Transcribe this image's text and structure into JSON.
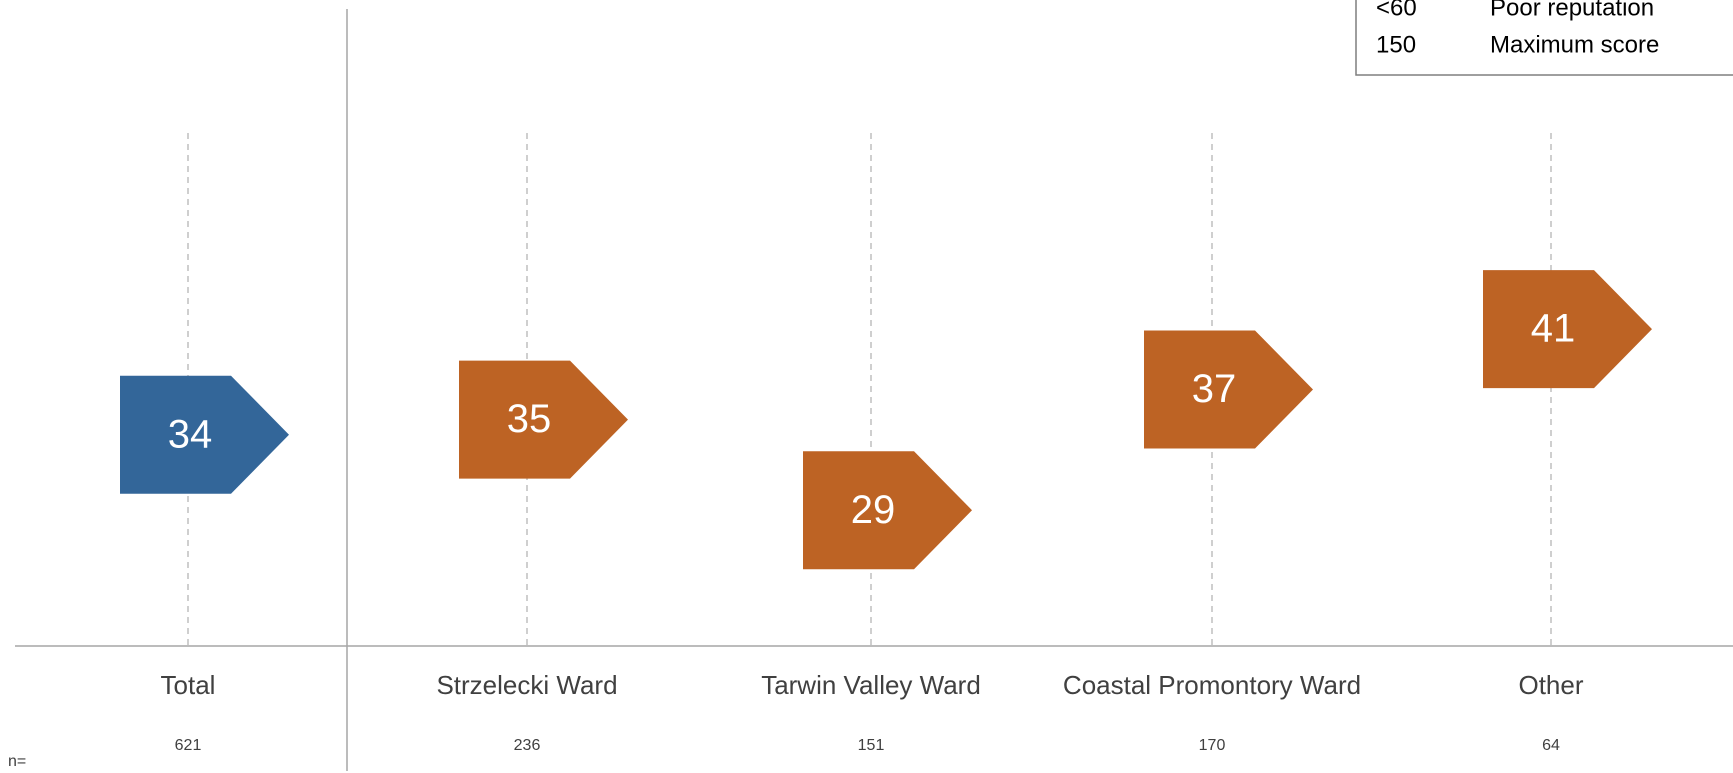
{
  "chart_data": {
    "type": "pentagon",
    "categories": [
      "Total",
      "Strzelecki Ward",
      "Tarwin Valley Ward",
      "Coastal Promontory Ward",
      "Other"
    ],
    "values": [
      34,
      35,
      29,
      37,
      41
    ],
    "colors": [
      "#336699",
      "#bd6324",
      "#bd6324",
      "#bd6324",
      "#bd6324"
    ],
    "sample_label": "n=",
    "sample_sizes": [
      621,
      236,
      151,
      170,
      64
    ],
    "ylim": [
      20,
      54
    ],
    "legend_table": [
      [
        "<60",
        "Poor reputation"
      ],
      [
        "150",
        "Maximum score"
      ]
    ]
  }
}
